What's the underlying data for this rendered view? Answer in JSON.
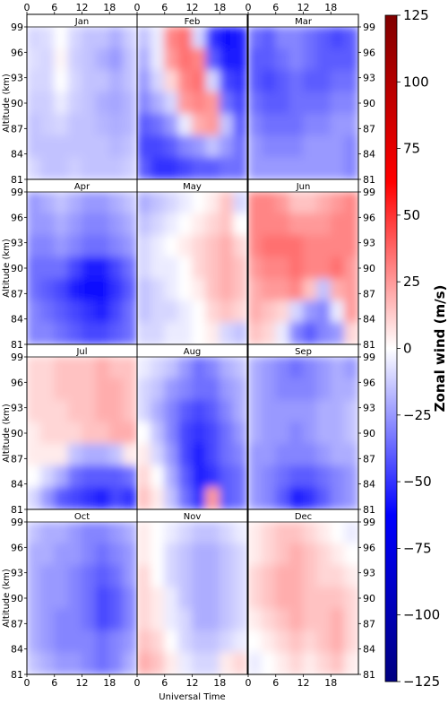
{
  "chart_data": {
    "type": "heatmap",
    "figure": {
      "xlabel": "Universal Time",
      "ylabel": "Altitude (km)",
      "x_ticks": [
        0,
        6,
        12,
        18
      ],
      "y_ticks": [
        81,
        84,
        87,
        90,
        93,
        96,
        99
      ],
      "xlim": [
        0,
        24
      ],
      "ylim": [
        81,
        99
      ]
    },
    "colorbar": {
      "label": "Zonal wind (m/s)",
      "ticks": [
        125,
        100,
        75,
        50,
        25,
        0,
        -25,
        -50,
        -75,
        -100,
        -125
      ],
      "tick_labels": [
        "125",
        "100",
        "75",
        "50",
        "25",
        "0",
        "−25",
        "−50",
        "−75",
        "−100",
        "−125"
      ],
      "range": [
        -125,
        125
      ],
      "colormap": "seismic",
      "colors": [
        "#000080",
        "#0000ff",
        "#ffffff",
        "#ff0000",
        "#800000"
      ]
    },
    "panels": [
      {
        "title": "Jan",
        "grid": [
          [
            -10,
            -8,
            0,
            -10,
            -15,
            -15,
            -20,
            -12
          ],
          [
            -8,
            -10,
            2,
            -12,
            -15,
            -20,
            -25,
            -15
          ],
          [
            -10,
            -10,
            0,
            -10,
            -15,
            -15,
            -20,
            -15
          ],
          [
            -12,
            -12,
            -5,
            -12,
            -15,
            -20,
            -22,
            -18
          ],
          [
            -15,
            -12,
            -10,
            -15,
            -15,
            -18,
            -20,
            -18
          ],
          [
            -15,
            -15,
            -15,
            -15,
            -15,
            -15,
            -18,
            -15
          ],
          [
            -10,
            -15,
            -15,
            -12,
            -15,
            -15,
            -15,
            -12
          ]
        ]
      },
      {
        "title": "Feb",
        "grid": [
          [
            -15,
            -5,
            30,
            35,
            -10,
            -50,
            -60,
            -55
          ],
          [
            -20,
            -5,
            25,
            35,
            30,
            -40,
            -55,
            -55
          ],
          [
            -25,
            -10,
            10,
            30,
            35,
            -10,
            -45,
            -50
          ],
          [
            -30,
            -20,
            -10,
            25,
            30,
            25,
            -35,
            -45
          ],
          [
            -40,
            -35,
            -25,
            -5,
            20,
            25,
            -15,
            -40
          ],
          [
            -45,
            -45,
            -40,
            -30,
            -25,
            -15,
            -25,
            -35
          ],
          [
            -40,
            -50,
            -50,
            -45,
            -40,
            -40,
            -35,
            -35
          ]
        ]
      },
      {
        "title": "Mar",
        "grid": [
          [
            -35,
            -40,
            -30,
            -30,
            -35,
            -40,
            -45,
            -40
          ],
          [
            -40,
            -40,
            -35,
            -30,
            -35,
            -40,
            -40,
            -40
          ],
          [
            -40,
            -45,
            -40,
            -35,
            -40,
            -40,
            -35,
            -35
          ],
          [
            -35,
            -40,
            -40,
            -35,
            -35,
            -35,
            -30,
            -30
          ],
          [
            -30,
            -35,
            -35,
            -35,
            -30,
            -30,
            -25,
            -25
          ],
          [
            -25,
            -30,
            -30,
            -30,
            -25,
            -25,
            -25,
            -30
          ],
          [
            -25,
            -25,
            -25,
            -25,
            -25,
            -25,
            -25,
            -30
          ]
        ]
      },
      {
        "title": "Apr",
        "grid": [
          [
            -25,
            -20,
            -15,
            -20,
            -25,
            -25,
            -20,
            -15
          ],
          [
            -25,
            -25,
            -20,
            -25,
            -30,
            -30,
            -25,
            -20
          ],
          [
            -30,
            -30,
            -25,
            -30,
            -35,
            -35,
            -30,
            -25
          ],
          [
            -35,
            -35,
            -35,
            -45,
            -55,
            -55,
            -45,
            -35
          ],
          [
            -35,
            -40,
            -45,
            -55,
            -60,
            -60,
            -50,
            -40
          ],
          [
            -30,
            -35,
            -40,
            -45,
            -50,
            -55,
            -45,
            -35
          ],
          [
            -30,
            -30,
            -35,
            -40,
            -45,
            -45,
            -40,
            -35
          ]
        ]
      },
      {
        "title": "May",
        "grid": [
          [
            -20,
            -15,
            -10,
            -5,
            0,
            5,
            15,
            -10
          ],
          [
            -15,
            -10,
            -5,
            0,
            5,
            10,
            15,
            0
          ],
          [
            -10,
            -5,
            0,
            5,
            10,
            15,
            20,
            10
          ],
          [
            -10,
            -5,
            -5,
            0,
            10,
            15,
            20,
            15
          ],
          [
            -15,
            -10,
            -5,
            0,
            5,
            15,
            20,
            15
          ],
          [
            -15,
            -10,
            -10,
            -5,
            0,
            10,
            15,
            10
          ],
          [
            -10,
            -10,
            -5,
            -5,
            0,
            5,
            -10,
            -15
          ]
        ]
      },
      {
        "title": "Jun",
        "grid": [
          [
            30,
            30,
            25,
            15,
            15,
            20,
            25,
            30
          ],
          [
            30,
            30,
            30,
            25,
            25,
            25,
            30,
            30
          ],
          [
            30,
            35,
            35,
            35,
            30,
            30,
            30,
            30
          ],
          [
            25,
            30,
            30,
            35,
            30,
            30,
            35,
            25
          ],
          [
            20,
            25,
            25,
            30,
            15,
            -15,
            20,
            25
          ],
          [
            20,
            15,
            10,
            -10,
            -25,
            -30,
            -5,
            25
          ],
          [
            15,
            10,
            -5,
            -30,
            -40,
            -30,
            -25,
            10
          ]
        ]
      },
      {
        "title": "Jul",
        "grid": [
          [
            10,
            10,
            15,
            15,
            15,
            20,
            15,
            15
          ],
          [
            10,
            10,
            15,
            15,
            15,
            20,
            20,
            15
          ],
          [
            10,
            10,
            10,
            15,
            15,
            20,
            20,
            15
          ],
          [
            5,
            10,
            10,
            10,
            15,
            15,
            20,
            20
          ],
          [
            5,
            5,
            5,
            -15,
            -20,
            -20,
            -15,
            5
          ],
          [
            0,
            -10,
            -20,
            -35,
            -40,
            -40,
            -40,
            -35
          ],
          [
            -10,
            -25,
            -40,
            -45,
            -50,
            -55,
            -45,
            -50
          ]
        ]
      },
      {
        "title": "Aug",
        "grid": [
          [
            -5,
            -10,
            -15,
            -25,
            -35,
            -30,
            -20,
            -15
          ],
          [
            -10,
            -15,
            -25,
            -30,
            -35,
            -35,
            -25,
            -20
          ],
          [
            -10,
            -20,
            -30,
            -40,
            -45,
            -40,
            -30,
            -20
          ],
          [
            0,
            -15,
            -30,
            -45,
            -50,
            -45,
            -35,
            -25
          ],
          [
            5,
            -10,
            -25,
            -45,
            -55,
            -45,
            -35,
            -30
          ],
          [
            10,
            0,
            -20,
            -40,
            -55,
            -50,
            -40,
            -35
          ],
          [
            15,
            5,
            -15,
            -35,
            -50,
            25,
            -40,
            -35
          ]
        ]
      },
      {
        "title": "Sep",
        "grid": [
          [
            -20,
            -25,
            -30,
            -35,
            -30,
            -25,
            -20,
            -25
          ],
          [
            -20,
            -25,
            -30,
            -30,
            -30,
            -25,
            -20,
            -20
          ],
          [
            -20,
            -25,
            -25,
            -25,
            -25,
            -20,
            -20,
            -15
          ],
          [
            -20,
            -25,
            -25,
            -30,
            -25,
            -20,
            -20,
            -15
          ],
          [
            -25,
            -25,
            -30,
            -30,
            -30,
            -25,
            -20,
            -20
          ],
          [
            -25,
            -30,
            -35,
            -40,
            -40,
            -35,
            -30,
            -25
          ],
          [
            -25,
            -30,
            -40,
            -55,
            -50,
            -40,
            -30,
            -25
          ]
        ]
      },
      {
        "title": "Oct",
        "grid": [
          [
            -15,
            -20,
            -20,
            -25,
            -30,
            -30,
            -25,
            -20
          ],
          [
            -20,
            -20,
            -25,
            -25,
            -30,
            -35,
            -30,
            -25
          ],
          [
            -20,
            -25,
            -25,
            -30,
            -35,
            -40,
            -35,
            -25
          ],
          [
            -20,
            -25,
            -25,
            -30,
            -35,
            -45,
            -40,
            -30
          ],
          [
            -20,
            -25,
            -30,
            -30,
            -35,
            -45,
            -40,
            -30
          ],
          [
            -20,
            -25,
            -30,
            -30,
            -30,
            -35,
            -30,
            -25
          ],
          [
            -15,
            -20,
            -25,
            -25,
            -30,
            -35,
            -30,
            -20
          ]
        ]
      },
      {
        "title": "Nov",
        "grid": [
          [
            5,
            0,
            -5,
            -10,
            -15,
            -15,
            -10,
            -5
          ],
          [
            5,
            0,
            -10,
            -15,
            -20,
            -20,
            -15,
            -10
          ],
          [
            10,
            0,
            -10,
            -15,
            -20,
            -20,
            -15,
            -10
          ],
          [
            10,
            5,
            -5,
            -15,
            -20,
            -20,
            -15,
            -10
          ],
          [
            10,
            5,
            -5,
            -10,
            -20,
            -20,
            -15,
            -10
          ],
          [
            15,
            10,
            0,
            -10,
            -15,
            -15,
            -10,
            -5
          ],
          [
            20,
            15,
            5,
            -5,
            -10,
            -10,
            5,
            10
          ]
        ]
      },
      {
        "title": "Dec",
        "grid": [
          [
            5,
            10,
            15,
            15,
            10,
            5,
            0,
            -5
          ],
          [
            5,
            10,
            15,
            20,
            15,
            10,
            5,
            0
          ],
          [
            10,
            15,
            20,
            20,
            15,
            10,
            10,
            5
          ],
          [
            10,
            15,
            20,
            20,
            15,
            15,
            15,
            10
          ],
          [
            5,
            10,
            15,
            20,
            15,
            15,
            20,
            10
          ],
          [
            0,
            5,
            10,
            15,
            10,
            15,
            20,
            10
          ],
          [
            -5,
            0,
            5,
            10,
            5,
            10,
            15,
            5
          ]
        ]
      }
    ]
  }
}
